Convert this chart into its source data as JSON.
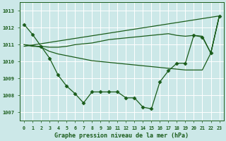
{
  "bg_color": "#cce8e8",
  "grid_color": "#b0d0d0",
  "line_color": "#1a5c1a",
  "marker_color": "#1a5c1a",
  "title": "Graphe pression niveau de la mer (hPa)",
  "xlim": [
    -0.5,
    23.5
  ],
  "ylim": [
    1006.5,
    1013.5
  ],
  "yticks": [
    1007,
    1008,
    1009,
    1010,
    1011,
    1012,
    1013
  ],
  "xticks": [
    0,
    1,
    2,
    3,
    4,
    5,
    6,
    7,
    8,
    9,
    10,
    11,
    12,
    13,
    14,
    15,
    16,
    17,
    18,
    19,
    20,
    21,
    22,
    23
  ],
  "series": [
    {
      "x": [
        0,
        1,
        2,
        3,
        4,
        5,
        6,
        7,
        8,
        9,
        10,
        11,
        12,
        13,
        14,
        15,
        16,
        17,
        18,
        19,
        20,
        21,
        22,
        23
      ],
      "y": [
        1012.2,
        1011.6,
        1010.9,
        1010.2,
        1009.2,
        1008.55,
        1008.1,
        1007.55,
        1008.2,
        1008.2,
        1008.2,
        1008.2,
        1007.85,
        1007.85,
        1007.3,
        1007.2,
        1008.8,
        1009.45,
        1009.9,
        1009.9,
        1011.55,
        1011.45,
        1010.5,
        1012.7
      ],
      "marker": "D",
      "markersize": 2.5,
      "linewidth": 0.9
    },
    {
      "x": [
        0,
        23
      ],
      "y": [
        1010.9,
        1012.7
      ],
      "marker": null,
      "markersize": 0,
      "linewidth": 0.9
    },
    {
      "x": [
        0,
        1,
        2,
        3,
        4,
        5,
        6,
        7,
        8,
        9,
        10,
        11,
        12,
        13,
        14,
        15,
        16,
        17,
        18,
        19,
        20,
        21,
        22,
        23
      ],
      "y": [
        1011.0,
        1010.9,
        1010.9,
        1010.85,
        1010.85,
        1010.9,
        1011.0,
        1011.05,
        1011.1,
        1011.2,
        1011.3,
        1011.35,
        1011.4,
        1011.45,
        1011.5,
        1011.55,
        1011.6,
        1011.65,
        1011.55,
        1011.5,
        1011.55,
        1011.5,
        1010.5,
        1012.7
      ],
      "marker": null,
      "markersize": 0,
      "linewidth": 0.9
    },
    {
      "x": [
        0,
        1,
        2,
        3,
        4,
        5,
        6,
        7,
        8,
        9,
        10,
        11,
        12,
        13,
        14,
        15,
        16,
        17,
        18,
        19,
        20,
        21,
        22,
        23
      ],
      "y": [
        1011.0,
        1010.95,
        1010.85,
        1010.6,
        1010.45,
        1010.35,
        1010.25,
        1010.15,
        1010.05,
        1010.0,
        1009.95,
        1009.9,
        1009.85,
        1009.8,
        1009.75,
        1009.7,
        1009.65,
        1009.6,
        1009.55,
        1009.5,
        1009.5,
        1009.5,
        1010.5,
        1012.7
      ],
      "marker": null,
      "markersize": 0,
      "linewidth": 0.9
    }
  ]
}
